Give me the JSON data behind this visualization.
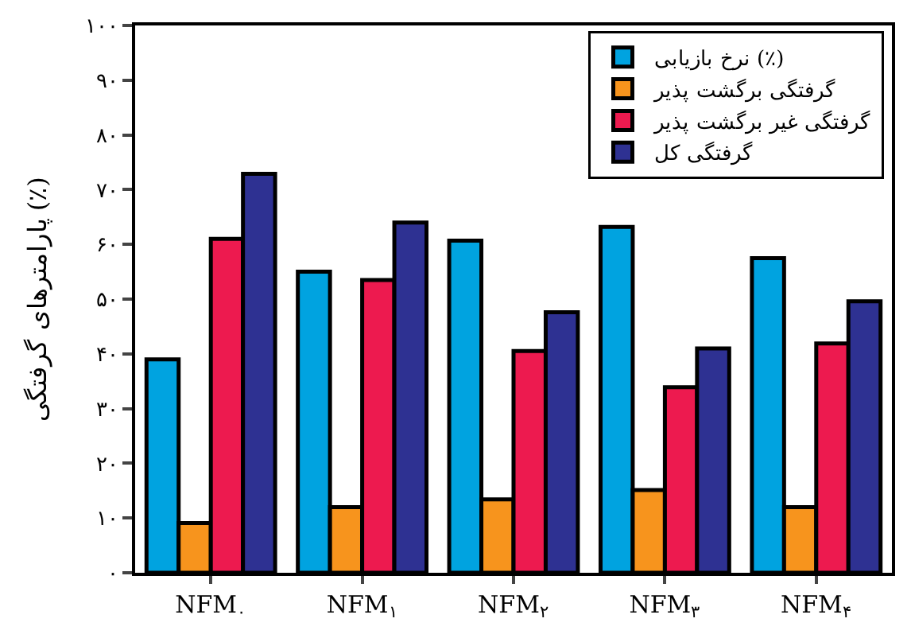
{
  "chart_data": {
    "type": "bar",
    "ylabel": "پارامترهای گرفتگی (٪)",
    "categories": [
      "NFM$_{۰}$",
      "NFM$_{۱}$",
      "NFM$_{۲}$",
      "NFM$_{۳}$",
      "NFM$_{۴}$"
    ],
    "series": [
      {
        "name": "نرخ بازیابی (٪)",
        "color": "#00a3e0",
        "values": [
          39,
          55,
          60.7,
          63.2,
          57.5
        ]
      },
      {
        "name": "گرفتگی برگشت پذیر",
        "color": "#f7941d",
        "values": [
          9.1,
          12,
          13.4,
          15.1,
          12
        ]
      },
      {
        "name": "گرفتگی غیر برگشت پذیر",
        "color": "#ed1a4f",
        "values": [
          61,
          53.5,
          40.5,
          33.9,
          41.9
        ]
      },
      {
        "name": "گرفتگی کل",
        "color": "#2e3192",
        "values": [
          72.9,
          64,
          47.6,
          41,
          49.6
        ]
      }
    ],
    "ylim": [
      0,
      100
    ],
    "yticks": [
      {
        "value": 0,
        "label": "۰"
      },
      {
        "value": 10,
        "label": "۱۰"
      },
      {
        "value": 20,
        "label": "۲۰"
      },
      {
        "value": 30,
        "label": "۳۰"
      },
      {
        "value": 40,
        "label": "۴۰"
      },
      {
        "value": 50,
        "label": "۵۰"
      },
      {
        "value": 60,
        "label": "۶۰"
      },
      {
        "value": 70,
        "label": "۷۰"
      },
      {
        "value": 80,
        "label": "۸۰"
      },
      {
        "value": 90,
        "label": "۹۰"
      },
      {
        "value": 100,
        "label": "۱۰۰"
      }
    ],
    "legend": "top right"
  }
}
